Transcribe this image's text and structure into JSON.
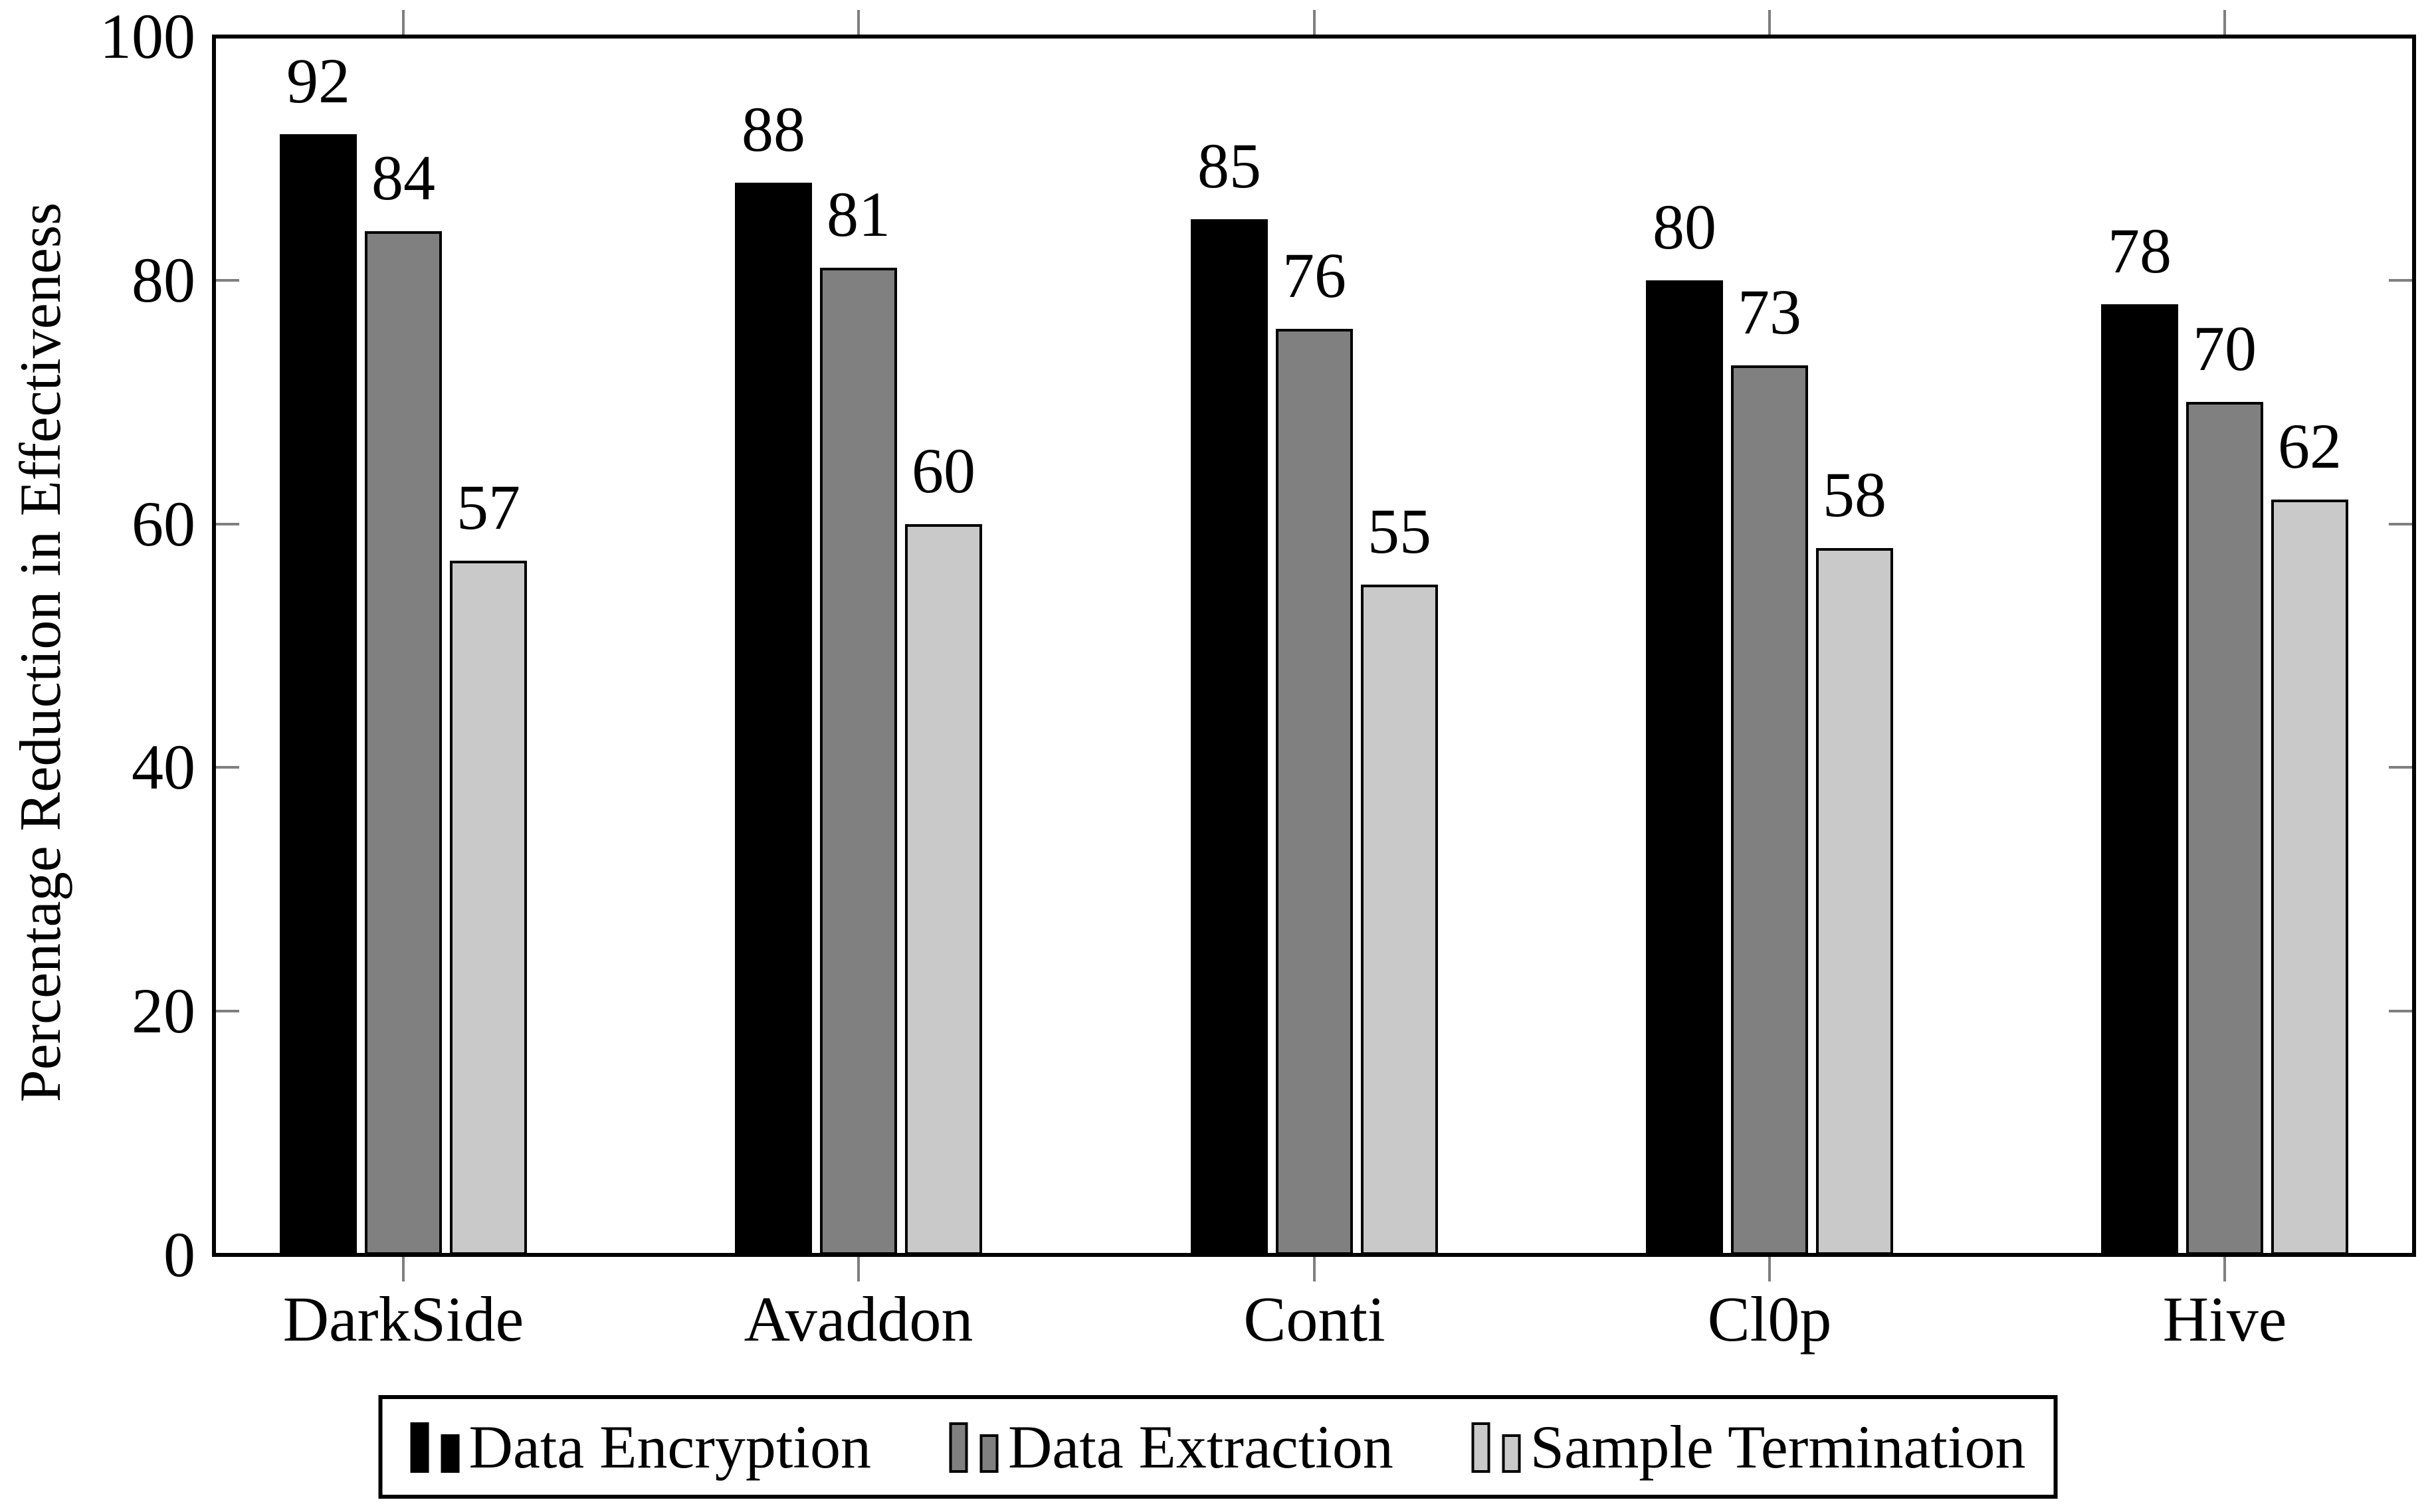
{
  "chart_data": {
    "type": "bar",
    "title": "",
    "xlabel": "",
    "ylabel": "Percentage Reduction in Effectiveness",
    "ylim": [
      0,
      100
    ],
    "yticks": [
      0,
      20,
      40,
      60,
      80,
      100
    ],
    "grid": false,
    "legend_position": "below-center",
    "categories": [
      "DarkSide",
      "Avaddon",
      "Conti",
      "Cl0p",
      "Hive"
    ],
    "series": [
      {
        "name": "Data Encryption",
        "color": "#000000",
        "values": [
          92,
          88,
          85,
          80,
          78
        ]
      },
      {
        "name": "Data Extraction",
        "color": "#808080",
        "values": [
          84,
          81,
          76,
          73,
          70
        ]
      },
      {
        "name": "Sample Termination",
        "color": "#c9c9c9",
        "values": [
          57,
          60,
          55,
          58,
          62
        ]
      }
    ],
    "bar_labels_shown": true,
    "colors": {
      "frame": "#000000",
      "tick": "#7f7f7f",
      "bar_outline": "#000000",
      "background": "#ffffff",
      "text": "#000000"
    }
  }
}
